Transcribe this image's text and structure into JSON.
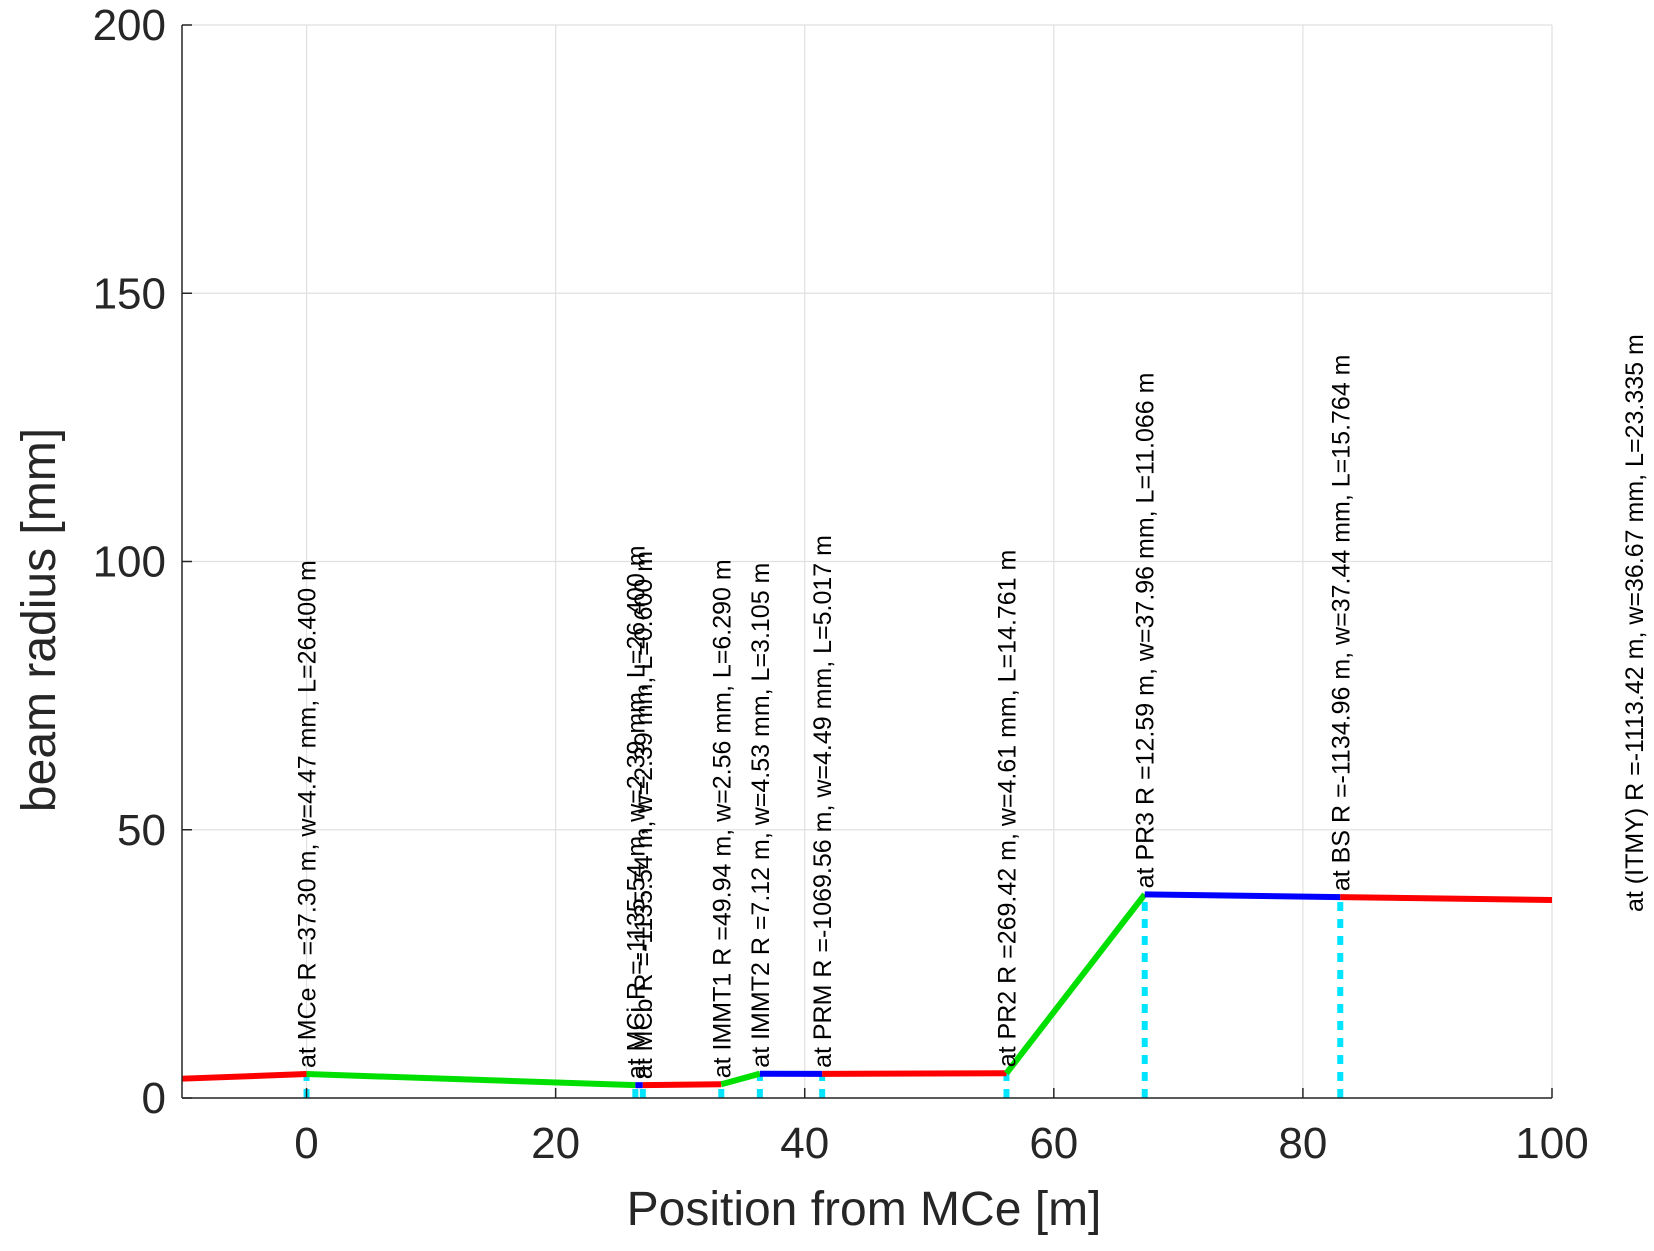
{
  "chart_data": {
    "type": "line",
    "xlabel": "Position from MCe [m]",
    "ylabel": "beam radius [mm]",
    "xlim": [
      -10,
      100
    ],
    "ylim": [
      0,
      200
    ],
    "xticks": [
      "0",
      "20",
      "40",
      "60",
      "80",
      "100"
    ],
    "yticks": [
      "0",
      "50",
      "100",
      "150",
      "200"
    ],
    "grid": true,
    "segments": [
      {
        "color": "#ff0000",
        "x": [
          -10,
          0
        ],
        "y": [
          3.6,
          4.47
        ]
      },
      {
        "color": "#00e000",
        "x": [
          0,
          26.4
        ],
        "y": [
          4.47,
          2.39
        ]
      },
      {
        "color": "#0000ff",
        "x": [
          26.4,
          27.0
        ],
        "y": [
          2.39,
          2.39
        ]
      },
      {
        "color": "#ff0000",
        "x": [
          27.0,
          33.3
        ],
        "y": [
          2.39,
          2.56
        ]
      },
      {
        "color": "#00e000",
        "x": [
          33.3,
          36.4
        ],
        "y": [
          2.56,
          4.53
        ]
      },
      {
        "color": "#0000ff",
        "x": [
          36.4,
          41.4
        ],
        "y": [
          4.53,
          4.49
        ]
      },
      {
        "color": "#ff0000",
        "x": [
          41.4,
          56.2
        ],
        "y": [
          4.49,
          4.61
        ]
      },
      {
        "color": "#00e000",
        "x": [
          56.2,
          67.3
        ],
        "y": [
          4.61,
          37.96
        ]
      },
      {
        "color": "#0000ff",
        "x": [
          67.3,
          83.0
        ],
        "y": [
          37.96,
          37.44
        ]
      },
      {
        "color": "#ff0000",
        "x": [
          83.0,
          100
        ],
        "y": [
          37.44,
          36.9
        ]
      }
    ],
    "optics": [
      {
        "x": 0,
        "label": "at MCe R =37.30 m, w=4.47 mm, L=26.400 m"
      },
      {
        "x": 26.4,
        "label": "at MCi R =-1135.54 m, w=2.39 mm, L=26.400 m"
      },
      {
        "x": 27.0,
        "label": "at MCb R =-1135.54 m, w=2.39 mm, L=0.600 m"
      },
      {
        "x": 33.3,
        "label": "at IMMT1 R =49.94 m, w=2.56 mm, L=6.290 m"
      },
      {
        "x": 36.4,
        "label": "at IMMT2 R =7.12 m, w=4.53 mm, L=3.105 m"
      },
      {
        "x": 41.4,
        "label": "at PRM R =-1069.56 m, w=4.49 mm, L=5.017 m"
      },
      {
        "x": 56.2,
        "label": "at PR2 R =269.42 m, w=4.61 mm, L=14.761 m"
      },
      {
        "x": 67.3,
        "label": "at PR3 R =12.59 m, w=37.96 mm, L=11.066 m"
      },
      {
        "x": 83.0,
        "label": "at BS R =-1134.96 m, w=37.44 mm, L=15.764 m"
      }
    ],
    "end_annotation": "at (ITMY) R =-1113.42 m, w=36.67 mm, L=23.335 m"
  }
}
